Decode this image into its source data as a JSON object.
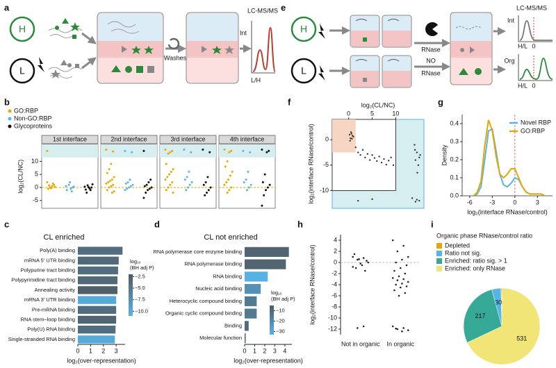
{
  "letters": [
    "a",
    "b",
    "c",
    "d",
    "e",
    "f",
    "g",
    "h",
    "i"
  ],
  "diagram_a": {
    "h_label": "H",
    "l_label": "L",
    "washes": "Washes",
    "y_label": "Int",
    "title": "LC-MS/MS",
    "x_label": "L/H"
  },
  "diagram_e": {
    "h_label": "H",
    "l_label": "L",
    "rnase": "RNase",
    "no_rnase": [
      "NO",
      "RNase"
    ],
    "title": "LC-MS/MS",
    "int_label": "Int",
    "org_label": "Org",
    "x_labels": [
      "H/L",
      "H/L"
    ],
    "zero_labels": [
      "0",
      "0"
    ]
  },
  "chart_data": [
    {
      "type": "facet_strip",
      "y_label": "log₂(CL/NC)",
      "facets": [
        "1st interface",
        "2nd interface",
        "3rd interface",
        "4th interface"
      ],
      "series": [
        {
          "name": "GO:RBP",
          "color": "#e6a800",
          "values": [
            [
              14,
              1,
              0.5,
              0,
              -0.5,
              0.2,
              1.5,
              -0.3,
              0.8,
              2
            ],
            [
              14.5,
              13.8,
              9,
              7,
              5.5,
              4,
              3,
              2.5,
              2,
              1.5,
              1,
              0.5,
              0,
              -1,
              -1.5,
              -2
            ],
            [
              14.5,
              14,
              13.5,
              13,
              9,
              7,
              6,
              5,
              4,
              3,
              2,
              1,
              0,
              -1,
              -2
            ],
            [
              14.5,
              14,
              13.5,
              10,
              8,
              6,
              4.5,
              3,
              2,
              1,
              0,
              -1,
              -2
            ]
          ]
        },
        {
          "name": "Non-GO:RBP",
          "color": "#56b4e9",
          "values": [
            [
              0.5,
              0,
              -0.5,
              1,
              -1,
              0.3,
              -1.5,
              2
            ],
            [
              14,
              13.5,
              3,
              2,
              1.5,
              1,
              0.5,
              0,
              -0.5,
              -1
            ],
            [
              14.5,
              13.5,
              6,
              4,
              3,
              2,
              1,
              0,
              -1
            ],
            [
              14,
              13.5,
              6,
              3,
              2,
              1,
              0,
              -1
            ]
          ]
        },
        {
          "name": "Glycoproteins",
          "color": "#111111",
          "values": [
            [
              0.3,
              0,
              -0.4,
              0.8,
              -0.8,
              1.2,
              -1,
              0.1,
              -2
            ],
            [
              14,
              3,
              2,
              1,
              0.5,
              0,
              -0.5,
              -1,
              -2,
              -4
            ],
            [
              14.5,
              13.5,
              4,
              2,
              1,
              0,
              -1,
              -2,
              -3
            ],
            [
              14.5,
              14,
              13.5,
              5,
              2,
              1,
              0,
              -1,
              -3,
              -7
            ]
          ]
        }
      ],
      "ylim": [
        -8,
        16.5
      ],
      "yticks": [
        -5,
        0,
        5,
        10
      ],
      "band": [
        11.5,
        16.5
      ],
      "hline": 0
    },
    {
      "type": "scatter",
      "x_label": "log₂(CL/NC)",
      "y_label": "log₂(interface RNase/control)",
      "color": "#333333",
      "x": [
        0.2,
        0.5,
        0.8,
        0.4,
        0.6,
        1.0,
        0.3,
        0.7,
        1.5,
        2,
        2.5,
        3,
        3.5,
        4,
        4.5,
        5,
        5.5,
        6,
        6.5,
        7,
        7.5,
        8,
        8.5,
        9,
        9.5,
        14,
        14.5,
        15,
        14.2,
        14.8,
        15.2,
        14.6,
        14.1,
        13.5,
        14.5,
        15,
        14.2,
        2,
        5
      ],
      "y": [
        1.0,
        1.5,
        0.8,
        0.3,
        1.2,
        0.6,
        -0.2,
        0.2,
        -1.5,
        -2.5,
        -3,
        -2,
        -3.5,
        -2.8,
        -4,
        -3,
        -3.6,
        -4.2,
        -3.3,
        -4.5,
        -3.8,
        -4.9,
        -4.1,
        -3.5,
        -5,
        -1,
        -2.5,
        -3.5,
        -4,
        -5,
        -3,
        -6.5,
        -2,
        -11.5,
        -11.8,
        -12,
        -12.2,
        -12,
        -11.7
      ],
      "xlim": [
        -3.5,
        16
      ],
      "ylim": [
        -13.5,
        4
      ],
      "xticks": [
        0,
        5,
        10
      ],
      "yticks": [
        0,
        -5,
        -10
      ],
      "cutoff_x": 10,
      "cutoff_y": -10,
      "highlight_box": {
        "x_max": 1.5,
        "y_min": -2.5
      }
    },
    {
      "type": "line",
      "x_label": "log₂(interface RNase/control)",
      "y_label": "Density",
      "x": [
        -5.5,
        -5,
        -4.5,
        -4,
        -3.5,
        -3,
        -2.5,
        -2,
        -1.5,
        -1,
        -0.5,
        0,
        0.5,
        1,
        1.5,
        2,
        2.5,
        3,
        3.5,
        4
      ],
      "series": [
        {
          "name": "Novel RBP",
          "color": "#56b4e9",
          "values": [
            0,
            0.01,
            0.05,
            0.2,
            0.36,
            0.37,
            0.25,
            0.12,
            0.06,
            0.05,
            0.07,
            0.1,
            0.09,
            0.05,
            0.02,
            0.01,
            0.01,
            0.01,
            0.01,
            0
          ]
        },
        {
          "name": "GO:RBP",
          "color": "#e6a800",
          "values": [
            0,
            0.02,
            0.08,
            0.28,
            0.42,
            0.36,
            0.22,
            0.12,
            0.1,
            0.12,
            0.15,
            0.15,
            0.1,
            0.05,
            0.02,
            0.01,
            0.01,
            0.01,
            0.01,
            0
          ]
        }
      ],
      "xlim": [
        -7,
        5
      ],
      "ylim": [
        0,
        0.45
      ],
      "xticks": [
        -6,
        -3,
        0,
        3
      ],
      "yticks": [
        {
          "value": 0,
          "label": "0.0"
        },
        0.1,
        0.2,
        0.3,
        0.4
      ],
      "vline": 0
    },
    {
      "type": "barh",
      "title": "CL enriched",
      "x_label": "log₂(over-representation)",
      "categories": [
        "Poly(A) binding",
        "mRNA 5′ UTR binding",
        "Polypurine tract binding",
        "Polypyrimidine tract binding",
        "Annealing activity",
        "mRNA 3′ UTR binding",
        "Pre-mRNA binding",
        "RNA stem–loop binding",
        "Poly(U) RNA binding",
        "Single-stranded RNA binding"
      ],
      "values": [
        3.5,
        3.2,
        3.15,
        3.1,
        3.1,
        3.0,
        3.0,
        3.0,
        2.95,
        2.9
      ],
      "color_values": [
        -4,
        -3.5,
        -4,
        -3.5,
        -2.5,
        -10,
        -4,
        -3,
        -4,
        -10
      ],
      "colorbar": {
        "title": [
          "log₁₀",
          "(BH adj P)"
        ],
        "lim": [
          -11,
          -2
        ],
        "colors": [
          "#56b4e9",
          "#505a63"
        ],
        "ticks": [
          {
            "value": -2.5,
            "label": "−2.5"
          },
          {
            "value": -5,
            "label": "−5.0"
          },
          {
            "value": -7.5,
            "label": "−7.5"
          },
          {
            "value": -10,
            "label": "−10.0"
          }
        ]
      },
      "xlim": [
        0,
        3.7
      ],
      "xticks": [
        0,
        1,
        2,
        3
      ]
    },
    {
      "type": "barh",
      "title": "CL not enriched",
      "x_label": "log₂(over-representation)",
      "categories": [
        "RNA polymerase core enzyme binding",
        "RNA polymerase binding",
        "RNA binding",
        "Nucleic acid binding",
        "Heterocyclic compound binding",
        "Organic cyclic compound binding",
        "Binding",
        "Molecular function"
      ],
      "values": [
        4.4,
        4.1,
        2.3,
        1.6,
        1.2,
        1.2,
        0.4,
        0.1
      ],
      "color_values": [
        -8,
        -8,
        -32,
        -22,
        -15,
        -15,
        -10,
        -5
      ],
      "colorbar": {
        "title": [
          "log₁₀",
          "(BH adj P)"
        ],
        "lim": [
          -33,
          -5
        ],
        "colors": [
          "#56b4e9",
          "#505a63"
        ],
        "ticks": [
          {
            "value": -10,
            "label": "−10"
          },
          {
            "value": -20,
            "label": "−20"
          },
          {
            "value": -30,
            "label": "−30"
          }
        ]
      },
      "xlim": [
        0,
        4.7
      ],
      "xticks": [
        0,
        1,
        2,
        3,
        4
      ]
    },
    {
      "type": "strip",
      "y_label": "log₂(interface RNase/control)",
      "categories": [
        "Not in organic",
        "In organic"
      ],
      "color": "#222222",
      "values": [
        [
          1,
          0.8,
          0.5,
          0,
          -0.5,
          -1,
          0.3,
          -0.2,
          1.5,
          -1.5,
          0.6,
          -0.8,
          -11.5,
          -11.8
        ],
        [
          4,
          3,
          2,
          1,
          0.5,
          0,
          -0.5,
          -1,
          -1.5,
          -2,
          -2.5,
          -2.8,
          -3,
          -3.2,
          -3.5,
          -3.8,
          -4,
          -4.3,
          -4.5,
          -5,
          -5.5,
          -6,
          -11.5,
          -11.8,
          -12,
          -12.2,
          -12.4,
          -11.9
        ]
      ],
      "ylim": [
        -13,
        5
      ],
      "yticks": [
        4,
        2,
        0,
        -2,
        -4,
        -6,
        -8,
        -10,
        -12
      ],
      "hline": 0
    },
    {
      "type": "pie",
      "title": "Organic phase RNase/control ratio",
      "categories": [
        "Depleted",
        "Ratio not sig.",
        "Enriched: ratio sig. > 1",
        "Enriched: only RNase"
      ],
      "values": [
        3,
        30,
        217,
        531
      ],
      "value_labels": [
        null,
        "30",
        "217",
        "531"
      ],
      "colors": [
        "#e6a800",
        "#56b4e9",
        "#35a896",
        "#f1e577"
      ]
    }
  ]
}
